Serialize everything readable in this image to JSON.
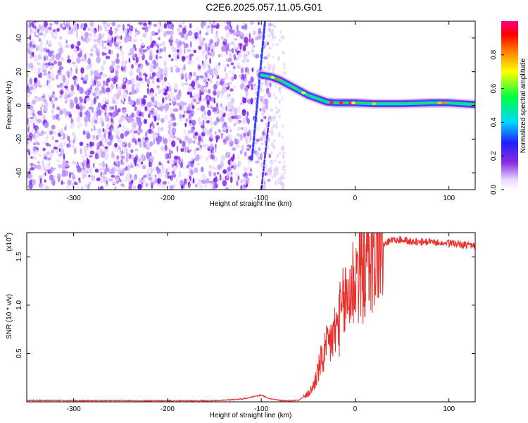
{
  "figure": {
    "title": "C2E6.2025.057.11.05.G01"
  },
  "chart_data": [
    {
      "type": "heatmap",
      "xlabel": "Height of straight line (km)",
      "ylabel": "Frequency (Hz)",
      "xlim": [
        -350,
        128
      ],
      "ylim": [
        -50,
        50
      ],
      "xticks": [
        -300,
        -200,
        -100,
        0,
        100
      ],
      "xtick_labels": [
        "-300",
        "-200",
        "-100",
        "0",
        "100"
      ],
      "yticks": [
        -40,
        -20,
        0,
        20,
        40
      ],
      "ytick_labels": [
        "-40",
        "-20",
        "0",
        "20",
        "40"
      ],
      "colorbar": {
        "label": "Normalized spectral amplitude",
        "range": [
          0,
          1
        ],
        "ticks": [
          0,
          0.2,
          0.4,
          0.6,
          0.8
        ],
        "tick_labels": [
          "0.0",
          "0.2",
          "0.4",
          "0.6",
          "0.8"
        ],
        "colormap": "rainbow (white-violet-blue-cyan-green-yellow-red-magenta)"
      },
      "features": {
        "noise_region_x": [
          -350,
          -90
        ],
        "main_signal": {
          "description": "frequency track descending from ~18 Hz to ~0 Hz",
          "x": [
            -100,
            -90,
            -80,
            -70,
            -60,
            -50,
            -40,
            -30,
            -20,
            -10,
            0,
            20,
            50,
            80,
            100,
            128
          ],
          "y": [
            18,
            17,
            15,
            12,
            9,
            6,
            4,
            2,
            1.5,
            1.5,
            1.5,
            1,
            1,
            1.5,
            1.5,
            0.5
          ]
        },
        "steep_streak": {
          "x": [
            -110,
            -96
          ],
          "y": [
            -32,
            50
          ]
        },
        "secondary_streak": {
          "x": [
            -100,
            -92
          ],
          "y": [
            -50,
            -10
          ]
        }
      }
    },
    {
      "type": "line",
      "xlabel": "Height of straight line (km)",
      "ylabel": "SNR (10 * v/v)",
      "yscale_label": "(x10",
      "yscale_exp": "4",
      "xlim": [
        -350,
        128
      ],
      "ylim": [
        0,
        17500
      ],
      "xticks": [
        -300,
        -200,
        -100,
        0,
        100
      ],
      "xtick_labels": [
        "-300",
        "-200",
        "-100",
        "0",
        "100"
      ],
      "yticks": [
        5000,
        10000,
        15000
      ],
      "ytick_labels": [
        "0.5",
        "1.0",
        "1.5"
      ],
      "series": [
        {
          "color": "#e8302c",
          "x": [
            -350,
            -300,
            -250,
            -200,
            -150,
            -120,
            -110,
            -100,
            -95,
            -90,
            -80,
            -70,
            -60,
            -50,
            -45,
            -40,
            -35,
            -30,
            -25,
            -20,
            -15,
            -10,
            -5,
            0,
            5,
            10,
            15,
            20,
            25,
            30,
            35,
            40,
            50,
            60,
            80,
            100,
            120,
            128
          ],
          "values": [
            150,
            120,
            130,
            110,
            120,
            300,
            500,
            700,
            500,
            300,
            150,
            100,
            200,
            800,
            1500,
            3000,
            4500,
            5500,
            6500,
            7500,
            9000,
            10500,
            11500,
            13000,
            14000,
            14500,
            15500,
            16000,
            16500,
            16800,
            17000,
            17100,
            17200,
            17000,
            16900,
            16800,
            16600,
            16500
          ]
        }
      ]
    }
  ]
}
